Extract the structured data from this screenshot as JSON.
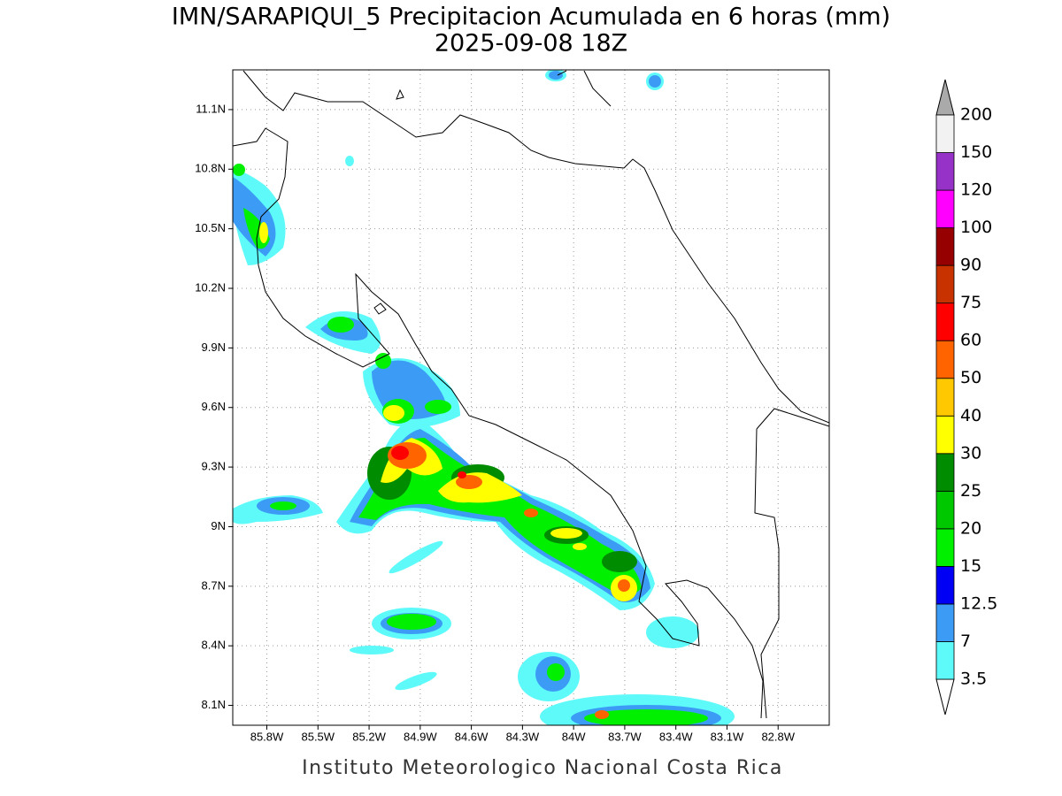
{
  "chart_data": {
    "type": "map",
    "title": "IMN/SARAPIQUI_5 Precipitacion Acumulada en 6 horas (mm)",
    "subtitle": "2025-09-08 18Z",
    "footer": "Instituto Meteorologico Nacional Costa Rica",
    "xlim": [
      -86.0,
      -82.5
    ],
    "ylim": [
      8.0,
      11.3
    ],
    "grid": true,
    "xticks": [
      {
        "value": -85.8,
        "label": "85.8W"
      },
      {
        "value": -85.5,
        "label": "85.5W"
      },
      {
        "value": -85.2,
        "label": "85.2W"
      },
      {
        "value": -84.9,
        "label": "84.9W"
      },
      {
        "value": -84.6,
        "label": "84.6W"
      },
      {
        "value": -84.3,
        "label": "84.3W"
      },
      {
        "value": -84.0,
        "label": "84W"
      },
      {
        "value": -83.7,
        "label": "83.7W"
      },
      {
        "value": -83.4,
        "label": "83.4W"
      },
      {
        "value": -83.1,
        "label": "83.1W"
      },
      {
        "value": -82.8,
        "label": "82.8W"
      }
    ],
    "yticks": [
      {
        "value": 8.1,
        "label": "8.1N"
      },
      {
        "value": 8.4,
        "label": "8.4N"
      },
      {
        "value": 8.7,
        "label": "8.7N"
      },
      {
        "value": 9.0,
        "label": "9N"
      },
      {
        "value": 9.3,
        "label": "9.3N"
      },
      {
        "value": 9.6,
        "label": "9.6N"
      },
      {
        "value": 9.9,
        "label": "9.9N"
      },
      {
        "value": 10.2,
        "label": "10.2N"
      },
      {
        "value": 10.5,
        "label": "10.5N"
      },
      {
        "value": 10.8,
        "label": "10.8N"
      },
      {
        "value": 11.1,
        "label": "11.1N"
      }
    ],
    "colorbar": {
      "levels": [
        3.5,
        7,
        12.5,
        15,
        20,
        25,
        30,
        40,
        50,
        60,
        75,
        90,
        100,
        120,
        150,
        200
      ],
      "colors": [
        "#5efafa",
        "#3c9cf5",
        "#0000f5",
        "#00f000",
        "#00c800",
        "#008c00",
        "#ffff00",
        "#ffc800",
        "#ff6400",
        "#ff0000",
        "#c83200",
        "#960000",
        "#ff00ff",
        "#9632c8",
        "#f2f2f2"
      ],
      "under_color": "#ffffff",
      "over_color": "#aaaaaa"
    }
  }
}
